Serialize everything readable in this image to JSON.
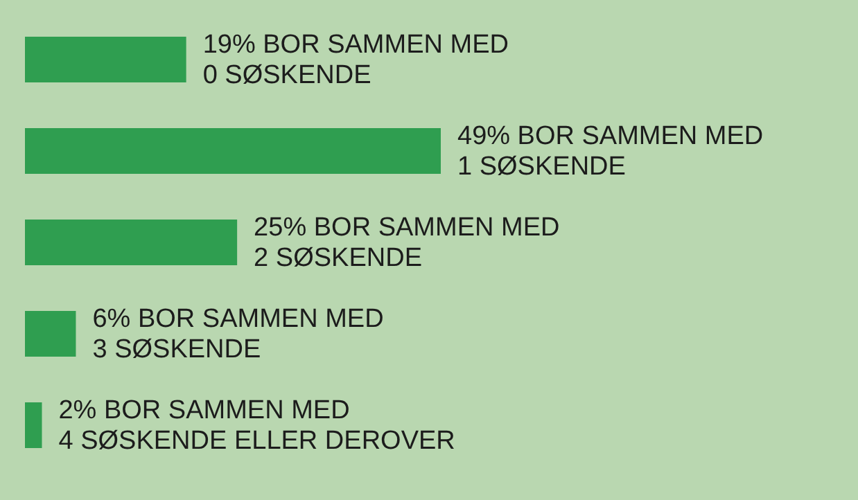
{
  "chart_data": {
    "type": "bar",
    "orientation": "horizontal",
    "categories": [
      null,
      null,
      null,
      null,
      null
    ],
    "values": [
      19,
      49,
      25,
      6,
      2
    ],
    "color": "#2f9e50",
    "value_labels": [
      "19% BOR SAMMEN MED\n0 SØSKENDE",
      "49% BOR SAMMEN MED\n1 SØSKENDE",
      "25% BOR SAMMEN MED\n2 SØSKENDE",
      "6% BOR SAMMEN MED\n3 SØSKENDE",
      "2% BOR SAMMEN MED\n4 SØSKENDE ELLER DEROVER"
    ]
  }
}
